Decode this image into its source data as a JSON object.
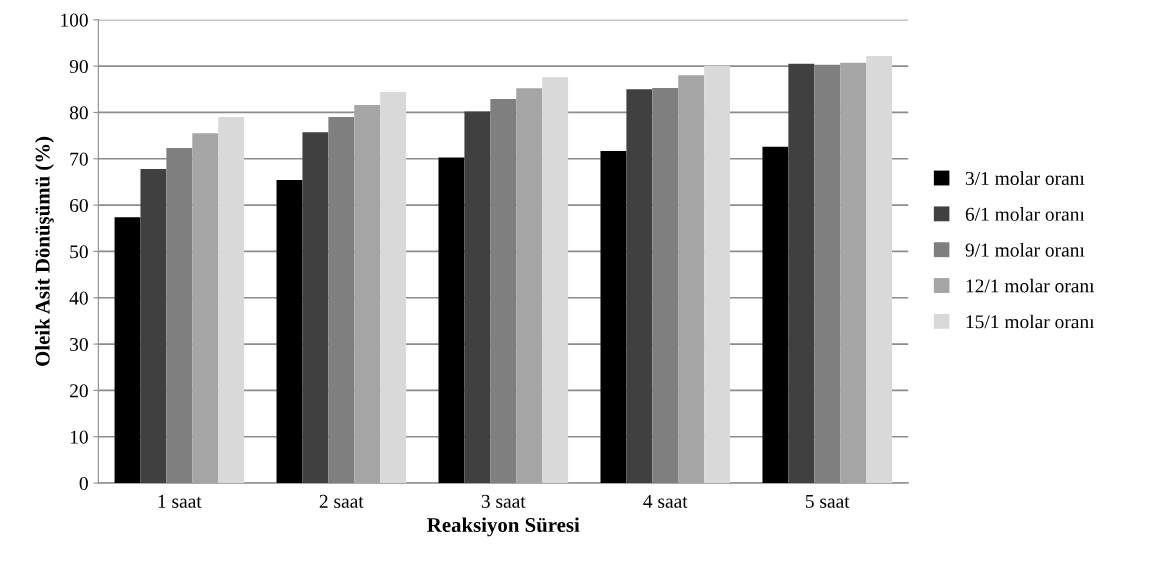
{
  "chart_data": {
    "type": "bar",
    "xlabel": "Reaksiyon Süresi",
    "ylabel": "Oleik Asit Dönüşümü (%)",
    "categories": [
      "1 saat",
      "2 saat",
      "3 saat",
      "4 saat",
      "5 saat"
    ],
    "series": [
      {
        "name": "3/1 molar oranı",
        "color": "#000000",
        "values": [
          57.4,
          65.4,
          70.3,
          71.7,
          72.6
        ]
      },
      {
        "name": "6/1 molar oranı",
        "color": "#404040",
        "values": [
          67.8,
          75.7,
          80.2,
          85.0,
          90.5
        ]
      },
      {
        "name": "9/1 molar oranı",
        "color": "#7f7f7f",
        "values": [
          72.3,
          79.0,
          82.9,
          85.3,
          90.3
        ]
      },
      {
        "name": "12/1 molar oranı",
        "color": "#a5a5a5",
        "values": [
          75.5,
          81.6,
          85.2,
          88.0,
          90.7
        ]
      },
      {
        "name": "15/1 molar oranı",
        "color": "#d9d9d9",
        "values": [
          79.0,
          84.4,
          87.6,
          90.1,
          92.2
        ]
      }
    ],
    "ylim": [
      0,
      100
    ],
    "yticks": [
      0,
      10,
      20,
      30,
      40,
      50,
      60,
      70,
      80,
      90,
      100
    ],
    "grid": "y",
    "legend": "right"
  }
}
